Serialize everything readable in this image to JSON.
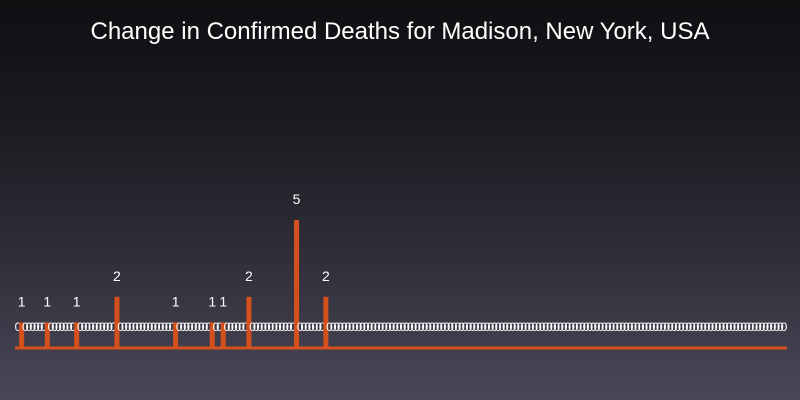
{
  "chart_data": {
    "type": "bar",
    "title": "Change in Confirmed Deaths for Madison, New York, USA",
    "xlabel": "",
    "ylabel": "",
    "ylim": [
      0,
      5
    ],
    "grid": false,
    "legend": "none",
    "colors": {
      "bar": "#d4501c",
      "label": "#ffffff"
    },
    "values": [
      0,
      1,
      0,
      0,
      0,
      0,
      0,
      0,
      1,
      0,
      0,
      0,
      0,
      0,
      0,
      0,
      1,
      0,
      0,
      0,
      0,
      0,
      0,
      0,
      0,
      0,
      0,
      2,
      0,
      0,
      0,
      0,
      0,
      0,
      0,
      0,
      0,
      0,
      0,
      0,
      0,
      0,
      0,
      1,
      0,
      0,
      0,
      0,
      0,
      0,
      0,
      0,
      0,
      1,
      0,
      0,
      1,
      0,
      0,
      0,
      0,
      0,
      0,
      2,
      0,
      0,
      0,
      0,
      0,
      0,
      0,
      0,
      0,
      0,
      0,
      0,
      5,
      0,
      0,
      0,
      0,
      0,
      0,
      0,
      2,
      0,
      0,
      0,
      0,
      0,
      0,
      0,
      0,
      0,
      0,
      0,
      0,
      0,
      0,
      0,
      0,
      0,
      0,
      0,
      0,
      0,
      0,
      0,
      0,
      0,
      0,
      0,
      0,
      0,
      0,
      0,
      0,
      0,
      0,
      0,
      0,
      0,
      0,
      0,
      0,
      0,
      0,
      0,
      0,
      0,
      0,
      0,
      0,
      0,
      0,
      0,
      0,
      0,
      0,
      0,
      0,
      0,
      0,
      0,
      0,
      0,
      0,
      0,
      0,
      0,
      0,
      0,
      0,
      0,
      0,
      0,
      0,
      0,
      0,
      0,
      0,
      0,
      0,
      0,
      0,
      0,
      0,
      0,
      0,
      0,
      0,
      0,
      0,
      0,
      0,
      0,
      0,
      0,
      0,
      0,
      0,
      0,
      0,
      0,
      0,
      0,
      0,
      0,
      0,
      0,
      0,
      0,
      0,
      0,
      0,
      0,
      0,
      0,
      0,
      0,
      0,
      0,
      0,
      0,
      0,
      0,
      0,
      0,
      0,
      0
    ]
  }
}
